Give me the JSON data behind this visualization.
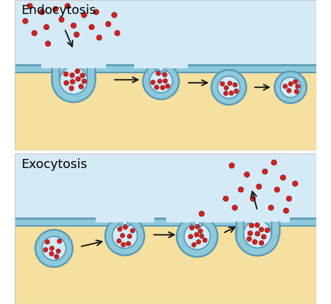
{
  "title1": "Endocytosis",
  "title2": "Exocytosis",
  "bg_color": "#ffffff",
  "extracell_bg": "#d4eaf7",
  "cytoplasm_bg": "#f5e0a0",
  "membrane_fill": "#8ec8db",
  "membrane_edge": "#5a9ab5",
  "dot_color": "#cc2222",
  "dot_edge": "#991111",
  "arrow_color": "#111111",
  "title_fontsize": 13,
  "panel_border": "#cccccc"
}
